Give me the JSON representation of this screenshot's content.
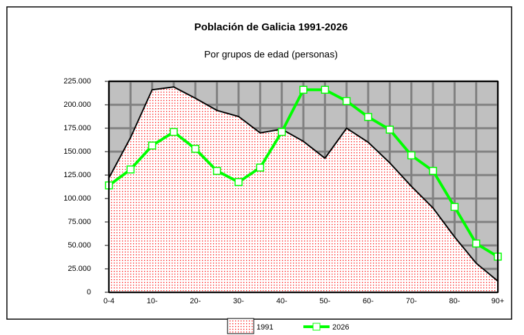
{
  "chart_data": {
    "type": "area_line",
    "title": "Población de Galicia 1991-2026",
    "subtitle": "Por  grupos de edad (personas)",
    "categories": [
      "0-4",
      null,
      "10-",
      null,
      "20-",
      null,
      "30-",
      null,
      "40-",
      null,
      "50-",
      null,
      "60-",
      null,
      "70-",
      null,
      "80-",
      null,
      "90+"
    ],
    "series": [
      {
        "name": "1991",
        "type": "area",
        "color": "#ff0000",
        "values": [
          122000,
          165000,
          216000,
          219000,
          207000,
          194000,
          187500,
          170000,
          174000,
          161000,
          143000,
          175000,
          160000,
          138000,
          113000,
          90000,
          59000,
          31000,
          12000
        ]
      },
      {
        "name": "2026",
        "type": "line",
        "color": "#00ff00",
        "values": [
          114000,
          131000,
          156500,
          171000,
          153000,
          129500,
          117500,
          133000,
          171000,
          216000,
          216000,
          204000,
          187000,
          173500,
          146000,
          129500,
          91000,
          52000,
          38000
        ]
      }
    ],
    "ylim": [
      0,
      225000
    ],
    "yticks": [
      0,
      {
        "value": 25000,
        "label": "25.000"
      },
      {
        "value": 50000,
        "label": "50.000"
      },
      {
        "value": 75000,
        "label": "75.000"
      },
      {
        "value": 100000,
        "label": "100.000"
      },
      {
        "value": 125000,
        "label": "125.000"
      },
      {
        "value": 150000,
        "label": "150.000"
      },
      {
        "value": 175000,
        "label": "175.000"
      },
      {
        "value": 200000,
        "label": "200.000"
      },
      {
        "value": 225000,
        "label": "225.000"
      }
    ],
    "grid": true,
    "legend": "bottom"
  }
}
